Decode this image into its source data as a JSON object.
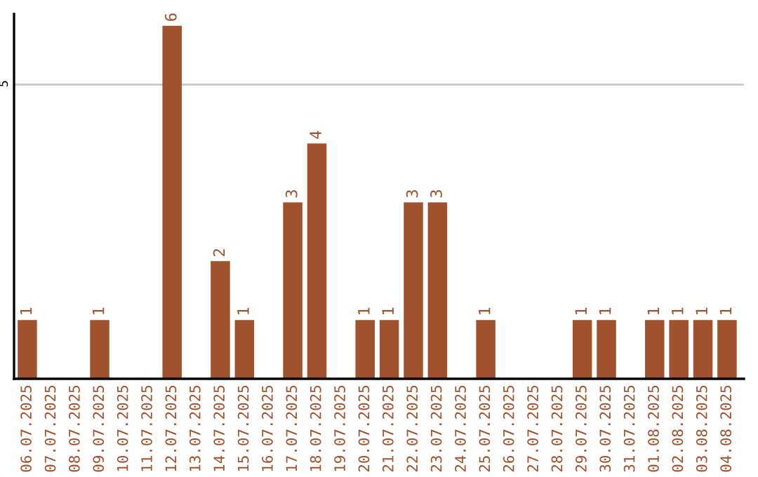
{
  "chart_data": {
    "type": "bar",
    "categories": [
      "06.07.2025",
      "07.07.2025",
      "08.07.2025",
      "09.07.2025",
      "10.07.2025",
      "11.07.2025",
      "12.07.2025",
      "13.07.2025",
      "14.07.2025",
      "15.07.2025",
      "16.07.2025",
      "17.07.2025",
      "18.07.2025",
      "19.07.2025",
      "20.07.2025",
      "21.07.2025",
      "22.07.2025",
      "23.07.2025",
      "24.07.2025",
      "25.07.2025",
      "26.07.2025",
      "27.07.2025",
      "28.07.2025",
      "29.07.2025",
      "30.07.2025",
      "31.07.2025",
      "01.08.2025",
      "02.08.2025",
      "03.08.2025",
      "04.08.2025"
    ],
    "values": [
      1,
      0,
      0,
      1,
      0,
      0,
      6,
      0,
      2,
      1,
      0,
      3,
      4,
      0,
      1,
      1,
      3,
      3,
      0,
      1,
      0,
      0,
      0,
      1,
      1,
      0,
      1,
      1,
      1,
      1
    ],
    "value_labels": [
      "1",
      null,
      null,
      "1",
      null,
      null,
      "6",
      null,
      "2",
      "1",
      null,
      "3",
      "4",
      null,
      "1",
      "1",
      "3",
      "3",
      null,
      "1",
      null,
      null,
      null,
      "1",
      "1",
      null,
      "1",
      "1",
      "1",
      "1"
    ],
    "color": "#a0522d",
    "ylim": [
      0,
      6.2
    ],
    "yticks": [
      5
    ],
    "grid": "y",
    "legend": false
  }
}
